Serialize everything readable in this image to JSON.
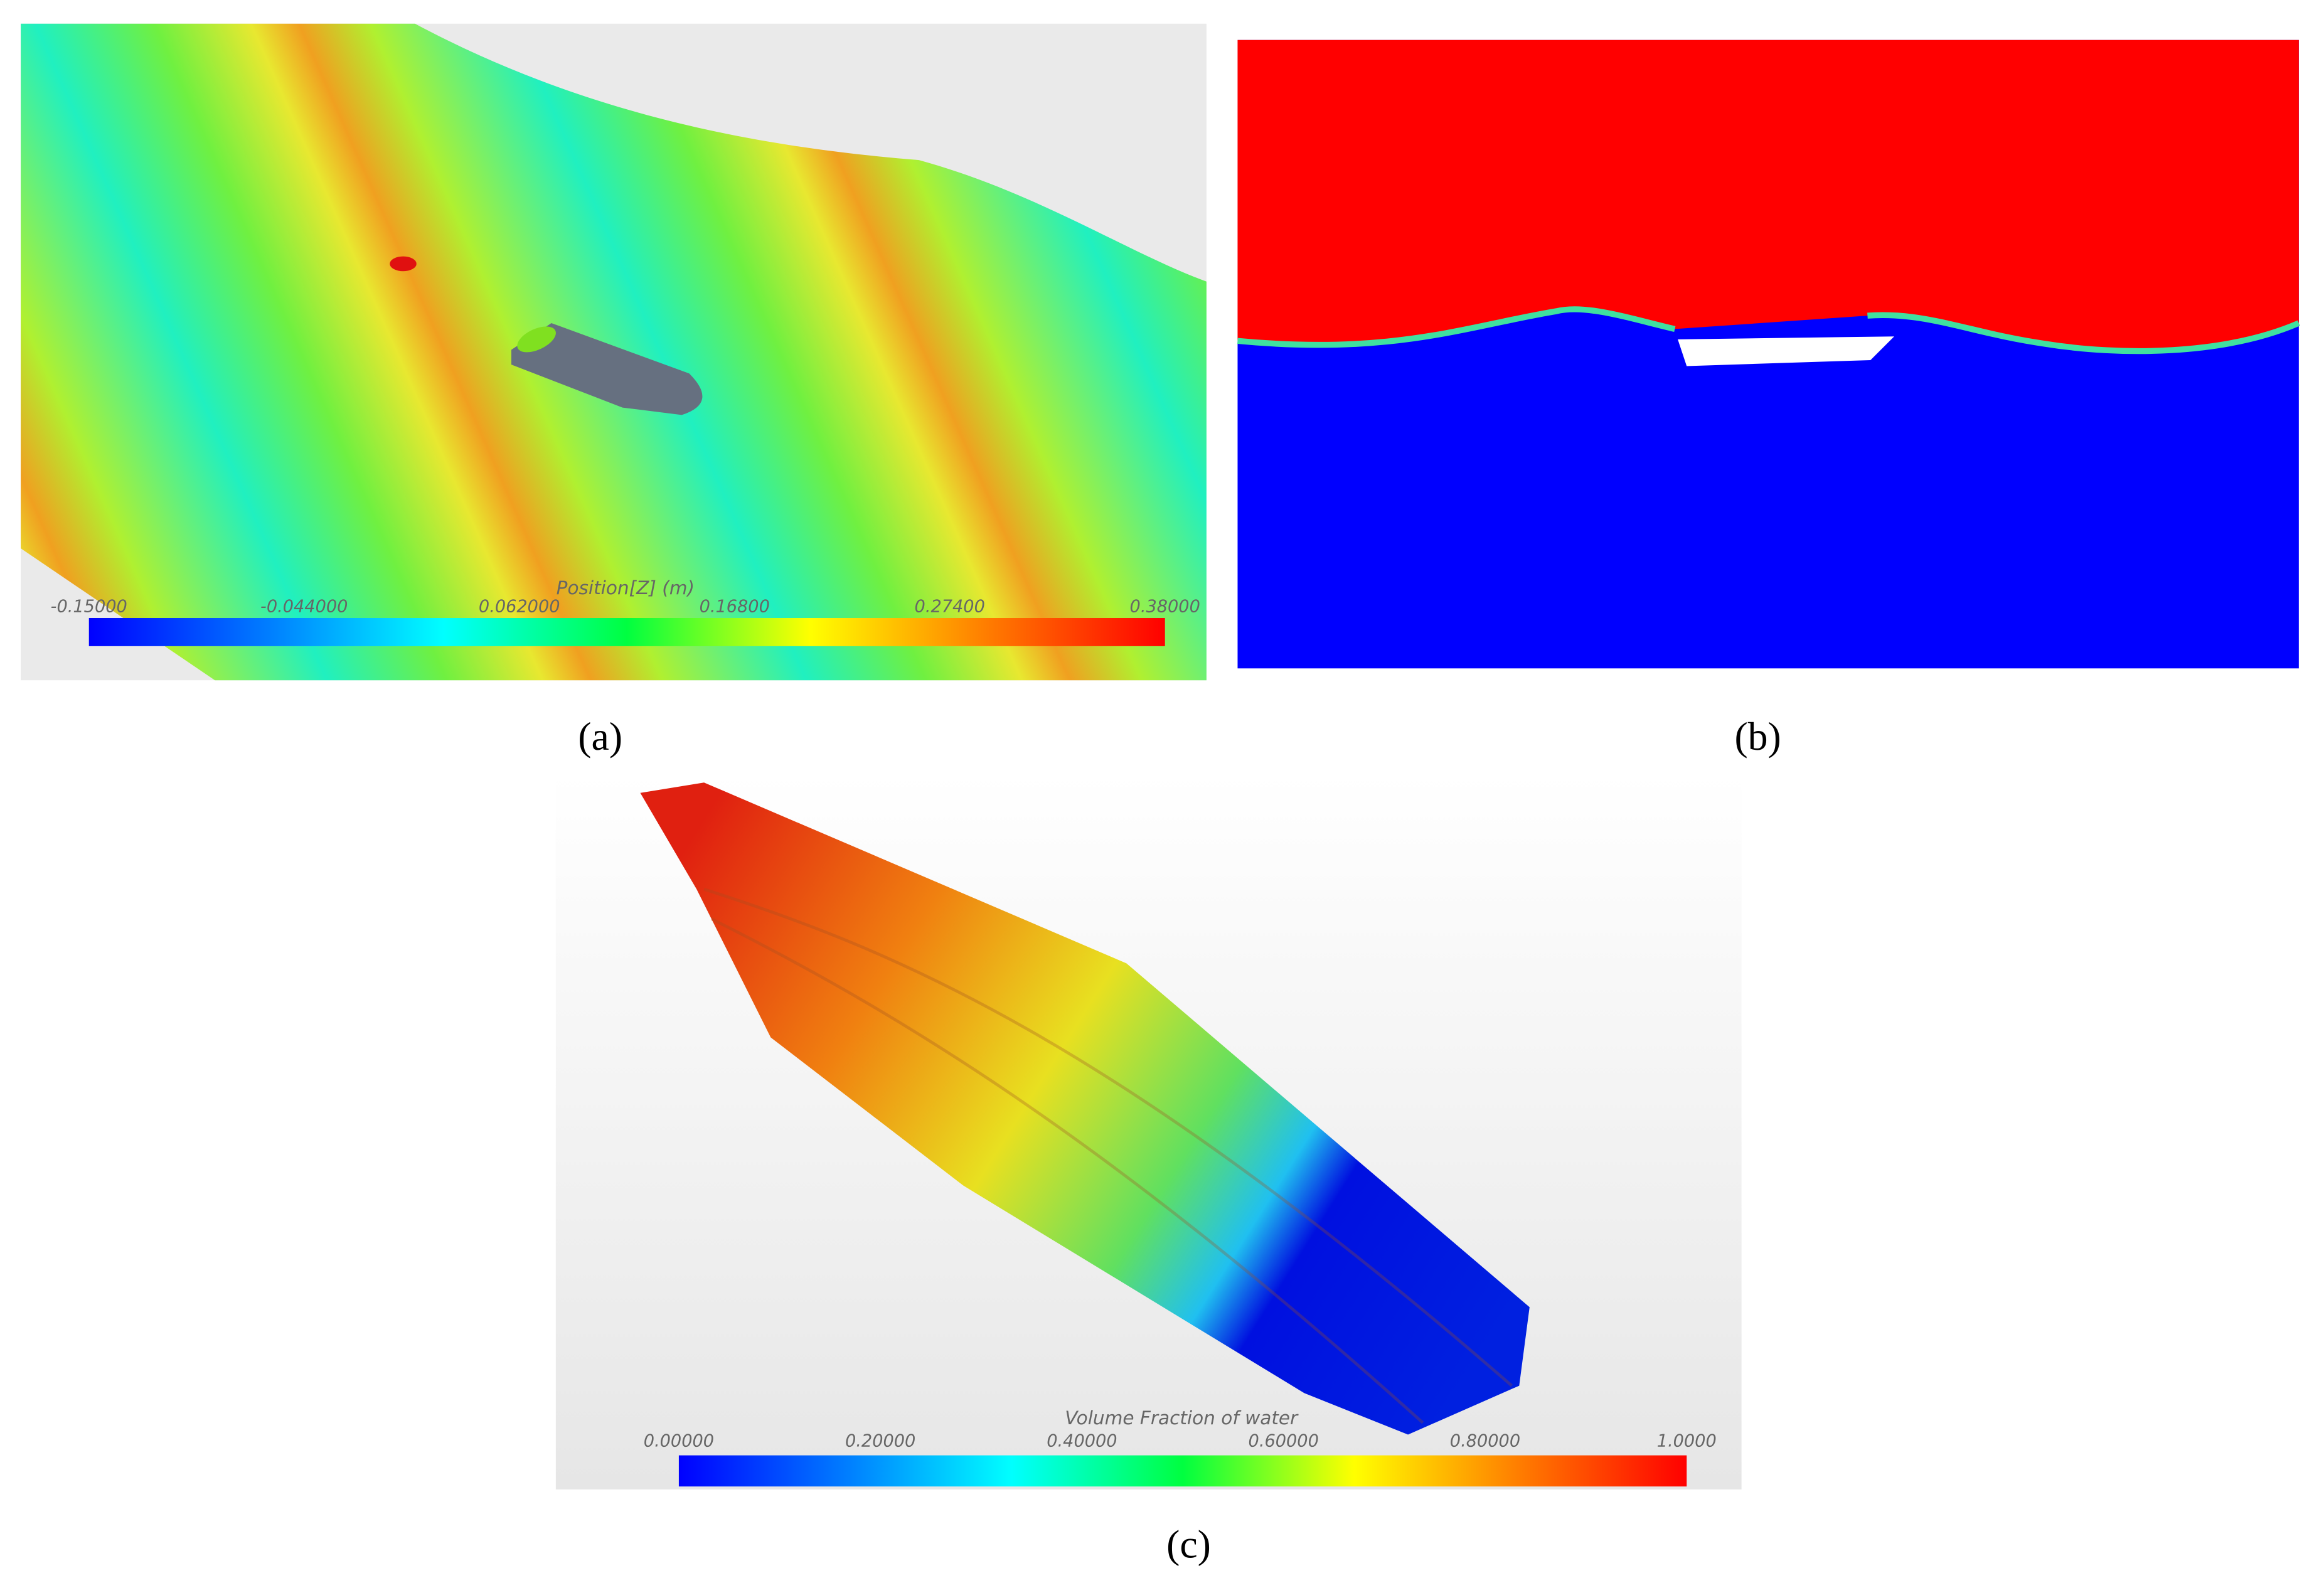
{
  "panels": [
    {
      "label": "(a)",
      "colorbar": {
        "title": "Position[Z] (m)",
        "ticks": [
          "-0.15000",
          "-0.044000",
          "0.062000",
          "0.16800",
          "0.27400",
          "0.38000"
        ]
      }
    },
    {
      "label": "(b)"
    },
    {
      "label": "(c)",
      "colorbar": {
        "title": "Volume Fraction of water",
        "ticks": [
          "0.00000",
          "0.20000",
          "0.40000",
          "0.60000",
          "0.80000",
          "1.0000"
        ]
      }
    }
  ]
}
